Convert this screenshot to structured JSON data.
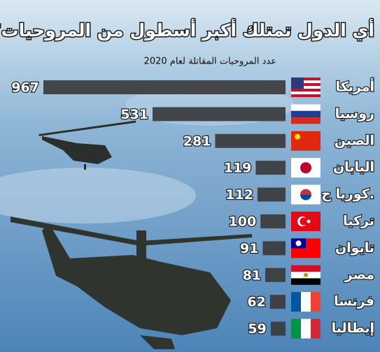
{
  "chart_data": {
    "type": "bar",
    "orientation": "horizontal",
    "title": "أي الدول تمتلك أكبر أسطول من المروحيات؟",
    "subtitle": "عدد المروحيات المقاتلة لعام 2020",
    "categories": [
      "أمريكا",
      "روسيا",
      "الصين",
      "اليابان",
      "كوريا ج.",
      "تركيا",
      "تايوان",
      "مصر",
      "فرنسا",
      "إيطاليا"
    ],
    "values": [
      967,
      531,
      281,
      119,
      112,
      100,
      91,
      81,
      62,
      59
    ],
    "color": "#3b3b3b"
  }
}
